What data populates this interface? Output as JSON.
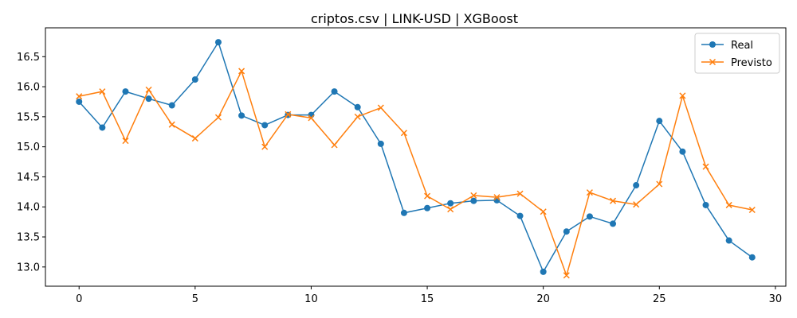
{
  "chart_data": {
    "type": "line",
    "title": "criptos.csv | LINK-USD | XGBoost",
    "xlabel": "",
    "ylabel": "",
    "xlim": [
      -1.45,
      30.45
    ],
    "ylim": [
      12.68,
      16.98
    ],
    "x_ticks": [
      0,
      5,
      10,
      15,
      20,
      25,
      30
    ],
    "y_ticks": [
      13.0,
      13.5,
      14.0,
      14.5,
      15.0,
      15.5,
      16.0,
      16.5
    ],
    "x_tick_labels": [
      "0",
      "5",
      "10",
      "15",
      "20",
      "25",
      "30"
    ],
    "y_tick_labels": [
      "13.0",
      "13.5",
      "14.0",
      "14.5",
      "15.0",
      "15.5",
      "16.0",
      "16.5"
    ],
    "grid": false,
    "legend_position": "top-right",
    "x": [
      0,
      1,
      2,
      3,
      4,
      5,
      6,
      7,
      8,
      9,
      10,
      11,
      12,
      13,
      14,
      15,
      16,
      17,
      18,
      19,
      20,
      21,
      22,
      23,
      24,
      25,
      26,
      27,
      28,
      29
    ],
    "series": [
      {
        "name": "Real",
        "color": "#1f77b4",
        "marker": "circle",
        "values": [
          15.75,
          15.32,
          15.92,
          15.8,
          15.69,
          16.12,
          16.74,
          15.52,
          15.36,
          15.53,
          15.53,
          15.92,
          15.66,
          15.05,
          13.9,
          13.98,
          14.06,
          14.1,
          14.11,
          13.85,
          12.92,
          13.59,
          13.84,
          13.72,
          14.36,
          15.43,
          14.92,
          14.03,
          13.44,
          13.16
        ]
      },
      {
        "name": "Previsto",
        "color": "#ff7f0e",
        "marker": "x",
        "values": [
          15.84,
          15.92,
          15.1,
          15.95,
          15.37,
          15.14,
          15.49,
          16.26,
          15.0,
          15.54,
          15.48,
          15.03,
          15.5,
          15.65,
          15.23,
          14.18,
          13.96,
          14.19,
          14.16,
          14.22,
          13.92,
          12.86,
          14.24,
          14.1,
          14.04,
          14.38,
          15.85,
          14.67,
          14.03,
          13.95
        ]
      }
    ]
  }
}
